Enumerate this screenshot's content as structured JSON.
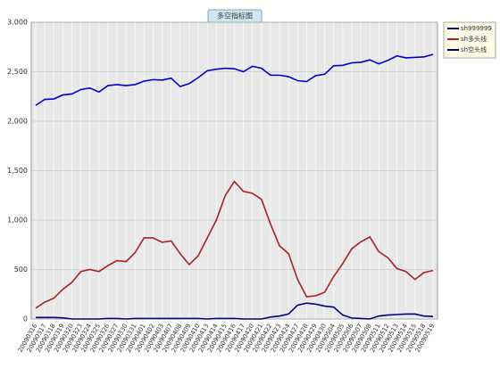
{
  "chart_data": {
    "type": "line",
    "title": "多空指标图",
    "categories": [
      "20090316",
      "20090317",
      "20090318",
      "20090319",
      "20090320",
      "20090323",
      "20090324",
      "20090325",
      "20090326",
      "20090327",
      "20090330",
      "20090331",
      "20090401",
      "20090402",
      "20090403",
      "20090407",
      "20090408",
      "20090409",
      "20090410",
      "20090413",
      "20090414",
      "20090415",
      "20090416",
      "20090417",
      "20090420",
      "20090421",
      "20090422",
      "20090423",
      "20090424",
      "20090427",
      "20090428",
      "20090429",
      "20090430",
      "20090504",
      "20090505",
      "20090506",
      "20090507",
      "20090508",
      "20090511",
      "20090512",
      "20090513",
      "20090514",
      "20090515",
      "20090518",
      "20090519"
    ],
    "series": [
      {
        "name": "sh999999",
        "color": "#0000cc",
        "values": [
          2160,
          2220,
          2225,
          2265,
          2275,
          2320,
          2335,
          2295,
          2360,
          2370,
          2360,
          2370,
          2405,
          2420,
          2415,
          2435,
          2350,
          2380,
          2440,
          2510,
          2525,
          2535,
          2530,
          2500,
          2555,
          2535,
          2465,
          2465,
          2450,
          2410,
          2400,
          2460,
          2475,
          2560,
          2565,
          2590,
          2595,
          2620,
          2580,
          2615,
          2660,
          2640,
          2645,
          2650,
          2675
        ]
      },
      {
        "name": "sh多头线",
        "color": "#aa2222",
        "values": [
          110,
          170,
          210,
          300,
          370,
          480,
          500,
          480,
          540,
          590,
          580,
          670,
          820,
          820,
          775,
          790,
          660,
          550,
          640,
          820,
          1000,
          1250,
          1390,
          1290,
          1270,
          1210,
          960,
          740,
          660,
          400,
          225,
          235,
          270,
          430,
          560,
          710,
          780,
          830,
          680,
          620,
          510,
          480,
          400,
          470,
          490
        ]
      },
      {
        "name": "sh空头线",
        "color": "#000080",
        "values": [
          15,
          15,
          15,
          12,
          0,
          0,
          0,
          0,
          5,
          5,
          0,
          5,
          5,
          5,
          5,
          5,
          5,
          5,
          5,
          0,
          5,
          5,
          5,
          0,
          0,
          0,
          20,
          30,
          50,
          140,
          160,
          150,
          130,
          120,
          40,
          10,
          5,
          0,
          30,
          40,
          45,
          50,
          50,
          30,
          25
        ]
      }
    ],
    "ylim": [
      0,
      3000
    ],
    "yticks": [
      0,
      500,
      {
        "value": 1000,
        "label": "1,000"
      },
      {
        "value": 1500,
        "label": "1,500"
      },
      {
        "value": 2000,
        "label": "2,000"
      },
      {
        "value": 2500,
        "label": "2,500"
      },
      {
        "value": 3000,
        "label": "3,000"
      }
    ],
    "grid": true
  }
}
